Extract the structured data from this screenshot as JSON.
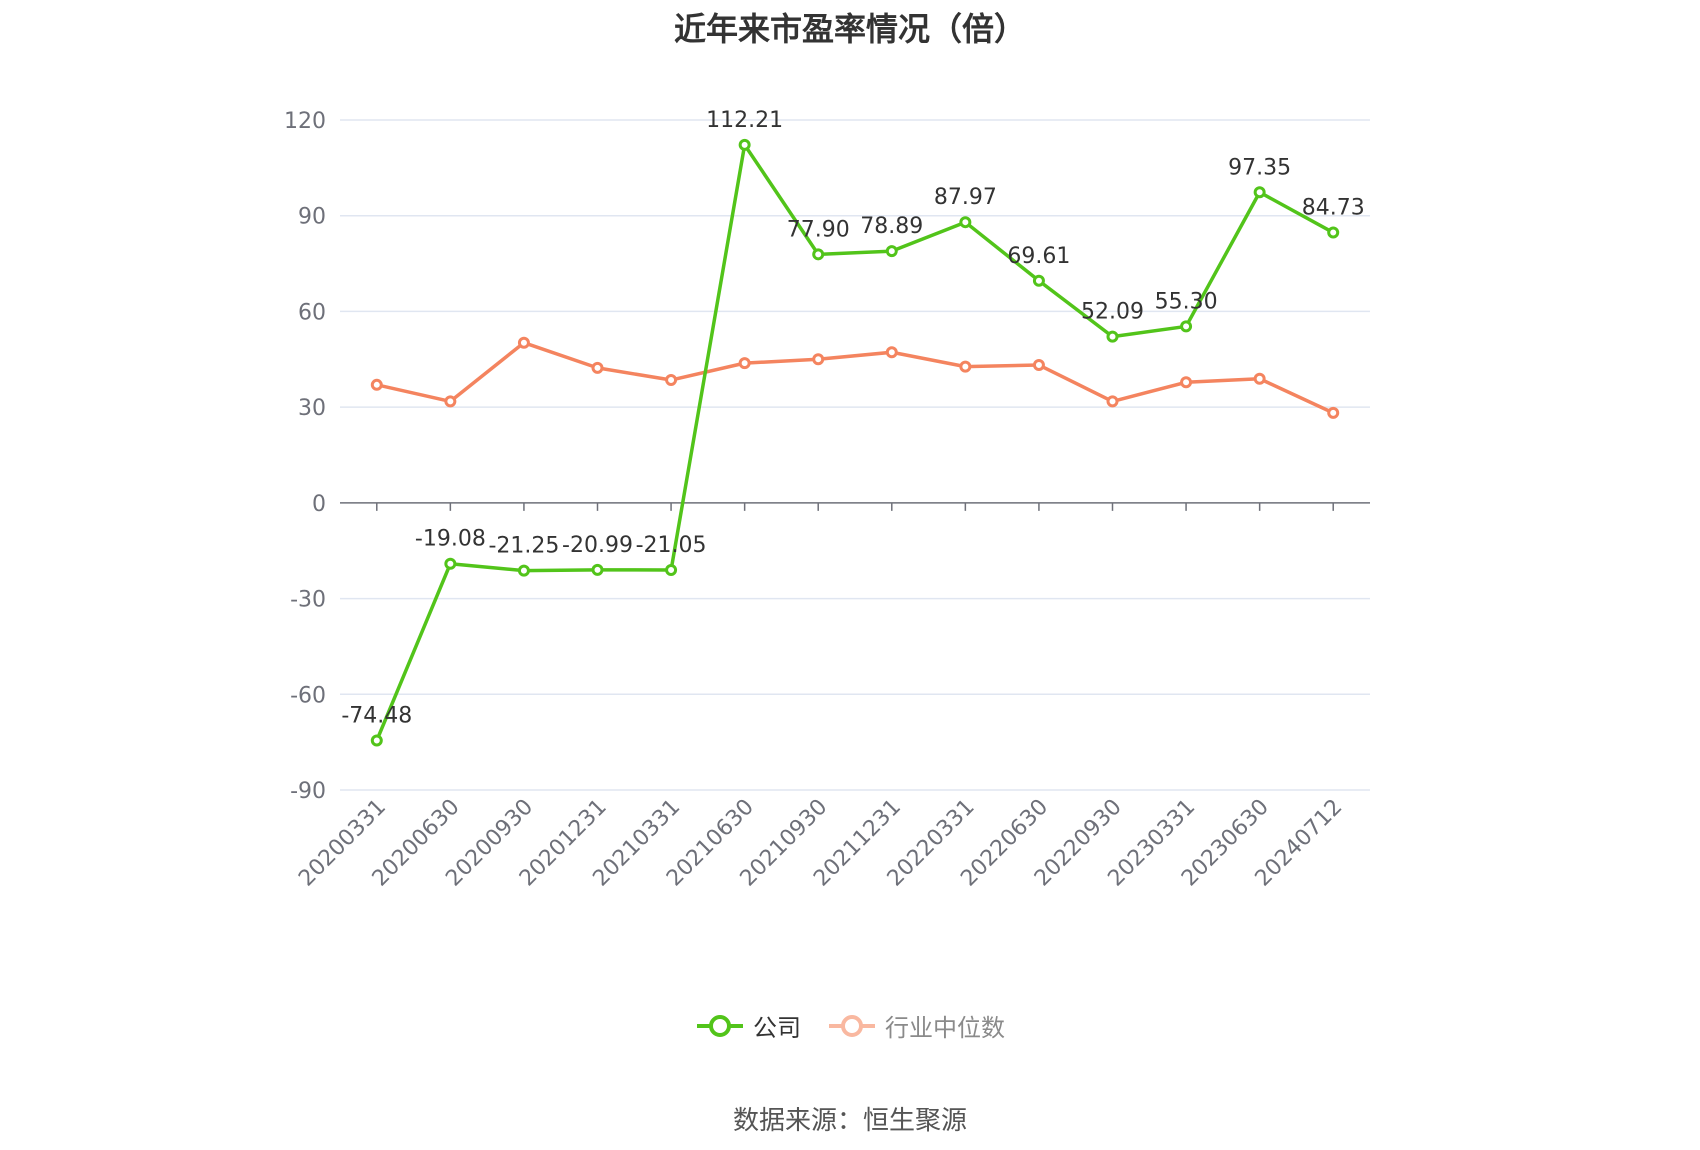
{
  "chart_data": {
    "type": "line",
    "title": "近年来市盈率情况（倍）",
    "categories": [
      "20200331",
      "20200630",
      "20200930",
      "20201231",
      "20210331",
      "20210630",
      "20210930",
      "20211231",
      "20220331",
      "20220630",
      "20220930",
      "20230331",
      "20230630",
      "20240712"
    ],
    "series": [
      {
        "name": "公司",
        "color": "#52c41a",
        "values": [
          -74.48,
          -19.08,
          -21.25,
          -20.99,
          -21.05,
          112.21,
          77.9,
          78.89,
          87.97,
          69.61,
          52.09,
          55.3,
          97.35,
          84.73
        ],
        "labels": [
          "-74.48",
          "-19.08",
          "-21.25",
          "-20.99",
          "-21.05",
          "112.21",
          "77.90",
          "78.89",
          "87.97",
          "69.61",
          "52.09",
          "55.30",
          "97.35",
          "84.73"
        ]
      },
      {
        "name": "行业中位数",
        "color": "#f4845f",
        "values": [
          37.0,
          31.8,
          50.2,
          42.3,
          38.5,
          43.8,
          45.0,
          47.2,
          42.7,
          43.2,
          31.8,
          37.8,
          38.9,
          28.2
        ]
      }
    ],
    "yticks": [
      120,
      90,
      60,
      30,
      0,
      -30,
      -60,
      -90
    ],
    "ylim": [
      -90,
      120
    ],
    "grid": true,
    "legend_position": "bottom"
  },
  "legend": {
    "company": "公司",
    "industry": "行业中位数"
  },
  "source": "数据来源：恒生聚源"
}
